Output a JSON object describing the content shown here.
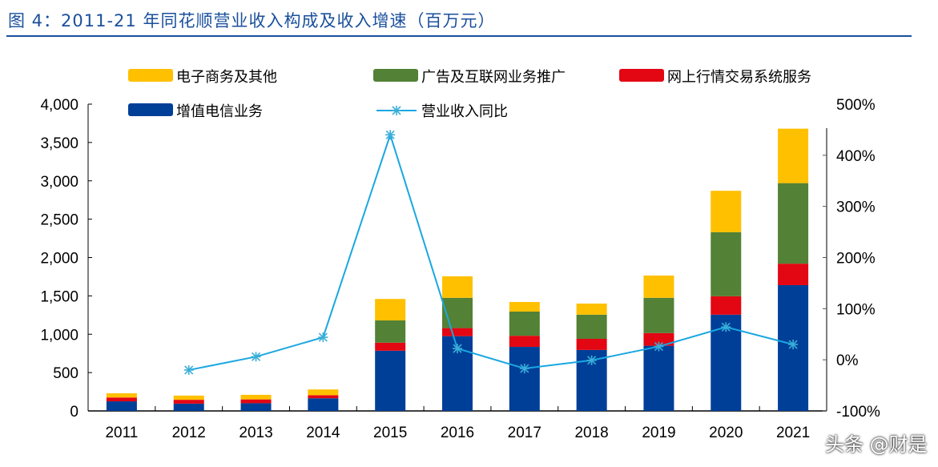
{
  "title": "图 4：2011-21 年同花顺营业收入构成及收入增速（百万元）",
  "watermark": "头条 @财是",
  "chart_data": {
    "type": "bar",
    "stacked": true,
    "categories": [
      "2011",
      "2012",
      "2013",
      "2014",
      "2015",
      "2016",
      "2017",
      "2018",
      "2019",
      "2020",
      "2021"
    ],
    "series": [
      {
        "name": "增值电信业务",
        "color": "#003f98",
        "values": [
          125,
          95,
          100,
          165,
          785,
          975,
          835,
          795,
          850,
          1255,
          1640
        ]
      },
      {
        "name": "网上行情交易系统服务",
        "color": "#e30613",
        "values": [
          50,
          50,
          50,
          40,
          105,
          105,
          145,
          145,
          165,
          240,
          280
        ]
      },
      {
        "name": "广告及互联网业务推广",
        "color": "#538135",
        "values": [
          0,
          0,
          0,
          0,
          290,
          395,
          315,
          315,
          460,
          835,
          1050
        ]
      },
      {
        "name": "电子商务及其他",
        "color": "#ffc000",
        "values": [
          55,
          55,
          60,
          75,
          280,
          280,
          125,
          145,
          290,
          540,
          710
        ]
      }
    ],
    "line_series": {
      "name": "营业收入同比",
      "color": "#1aa7e0",
      "axis": "right",
      "unit": "%",
      "values": [
        null,
        -20,
        6,
        44,
        440,
        22,
        -17,
        -1,
        26,
        64,
        30
      ]
    },
    "ylim": [
      0,
      4000
    ],
    "yticks": [
      "0",
      "500",
      "1,000",
      "1,500",
      "2,000",
      "2,500",
      "3,000",
      "3,500",
      "4,000"
    ],
    "y2lim": [
      -100,
      500
    ],
    "y2ticks": [
      "-100%",
      "0%",
      "100%",
      "200%",
      "300%",
      "400%",
      "500%"
    ],
    "grid": false,
    "legend": "top"
  }
}
